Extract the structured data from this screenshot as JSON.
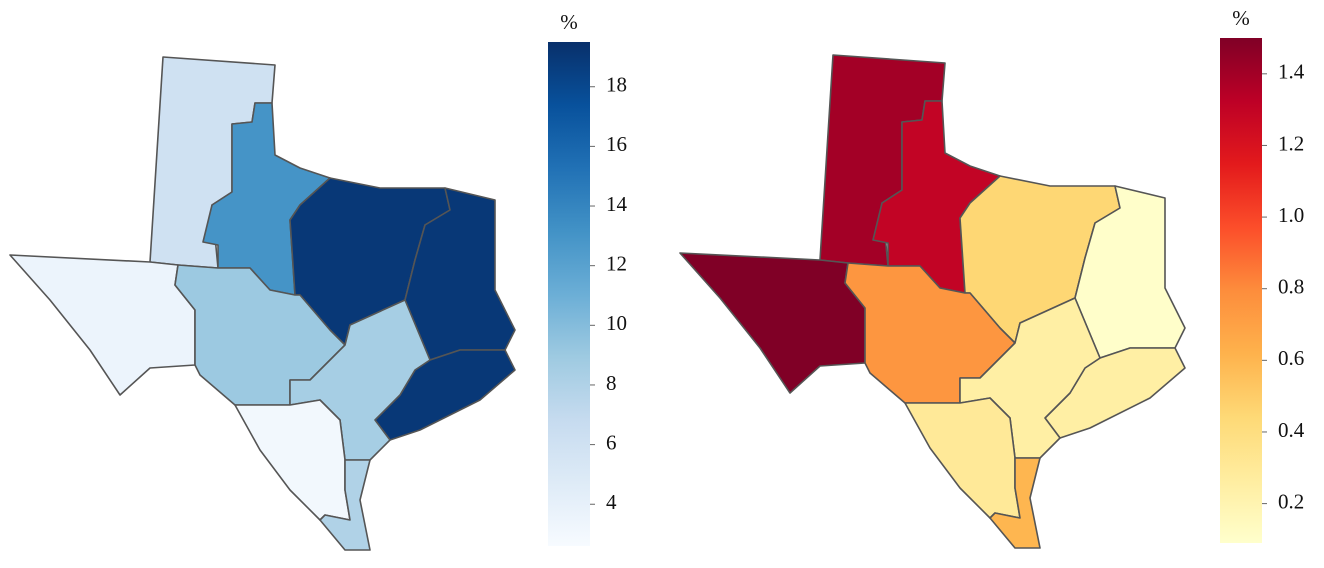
{
  "chart_data": [
    {
      "type": "choropleth",
      "colorbar_title": "%",
      "values": [
        6,
        13,
        19,
        19,
        19,
        3.5,
        9,
        8.5,
        3,
        8
      ],
      "colorscale": [
        "#f7fbff",
        "#deebf7",
        "#c6dbef",
        "#9ecae1",
        "#6baed6",
        "#4292c6",
        "#2171b5",
        "#08519c",
        "#08306b"
      ],
      "zlim": [
        2.6,
        19.5
      ],
      "zticks": [
        4,
        6,
        8,
        10,
        12,
        14,
        16,
        18
      ]
    },
    {
      "type": "choropleth",
      "colorbar_title": "%",
      "values": [
        1.4,
        1.3,
        0.45,
        0.1,
        0.25,
        1.5,
        0.75,
        0.25,
        0.3,
        0.6
      ],
      "colorscale": [
        "#ffffcc",
        "#ffeda0",
        "#fed976",
        "#feb24c",
        "#fd8d3c",
        "#fc4e2a",
        "#e31a1c",
        "#bd0026",
        "#800026"
      ],
      "zlim": [
        0.09,
        1.5
      ],
      "zticks": [
        0.2,
        0.4,
        0.6,
        0.8,
        {
          "value": 1,
          "label": "1.0"
        },
        1.2,
        1.4
      ]
    }
  ]
}
